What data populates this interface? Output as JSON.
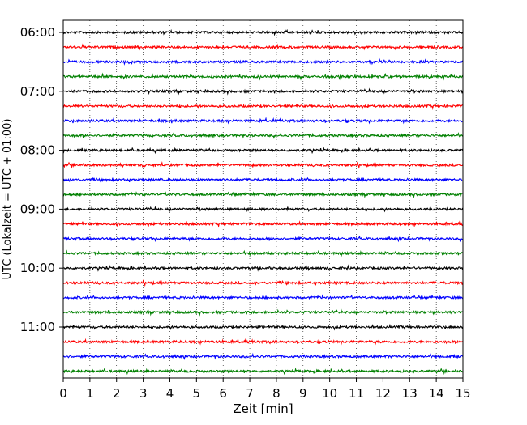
{
  "chart_data": {
    "type": "line",
    "subtype": "seismogram-helicorder",
    "xlabel": "Zeit  [min]",
    "ylabel": "UTC (Lokalzeit = UTC + 01:00)",
    "xlim": [
      0,
      15
    ],
    "x_ticks": [
      0,
      1,
      2,
      3,
      4,
      5,
      6,
      7,
      8,
      9,
      10,
      11,
      12,
      13,
      14,
      15
    ],
    "x_tick_labels": [
      "0",
      "1",
      "2",
      "3",
      "4",
      "5",
      "6",
      "7",
      "8",
      "9",
      "10",
      "11",
      "12",
      "13",
      "14",
      "15"
    ],
    "x_grid": "dotted vertical lines at every minute",
    "y_tick_labels": [
      "06:00",
      "07:00",
      "08:00",
      "09:00",
      "10:00",
      "11:00"
    ],
    "trace_interval_min": 15,
    "traces_per_hour": 4,
    "trace_count": 24,
    "trace_colors": [
      "#000000",
      "#ff0000",
      "#0000ff",
      "#008000"
    ]
  }
}
